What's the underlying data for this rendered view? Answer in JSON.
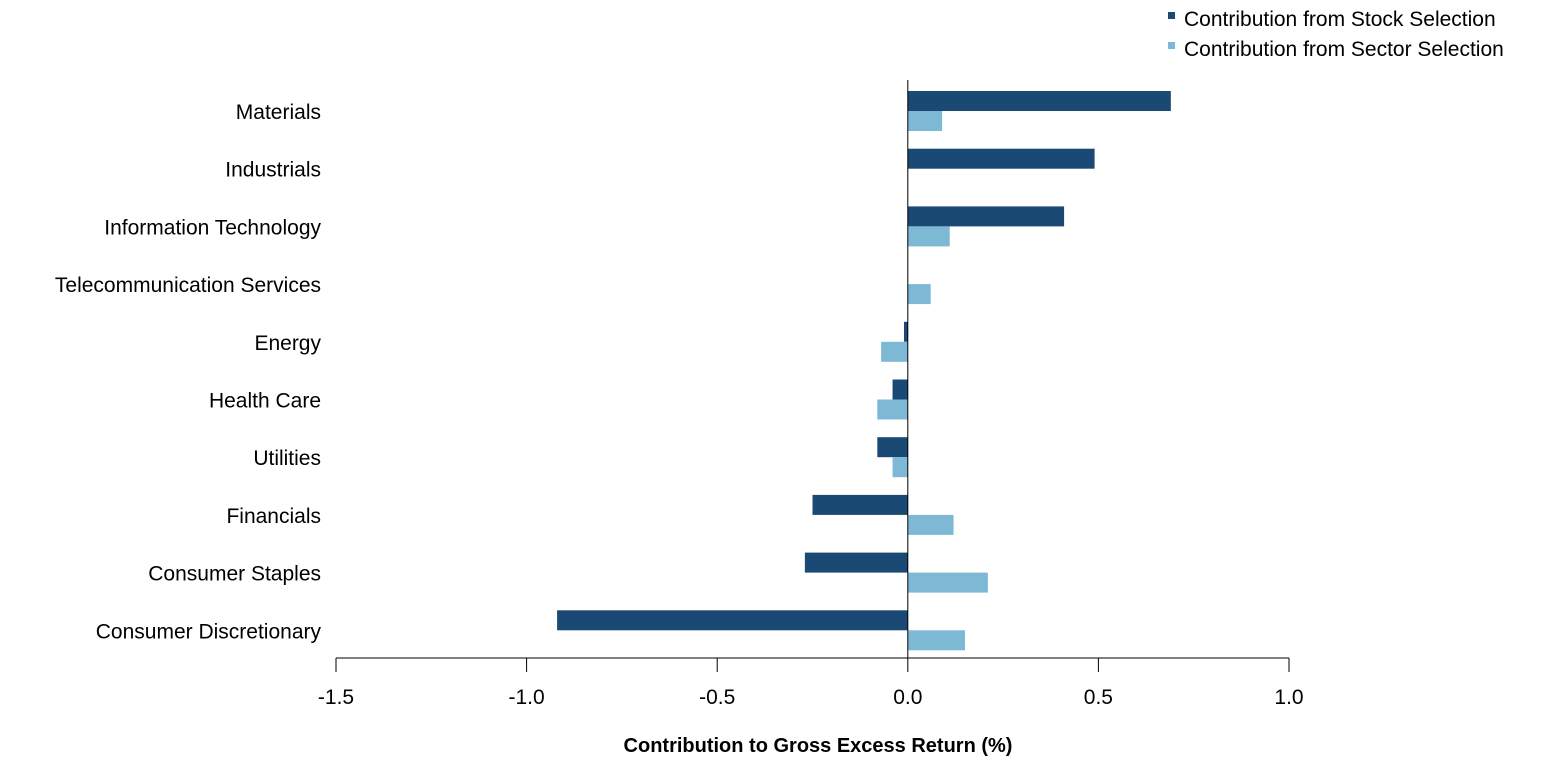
{
  "chart_data": {
    "type": "bar",
    "orientation": "horizontal",
    "categories": [
      "Materials",
      "Industrials",
      "Information Technology",
      "Telecommunication Services",
      "Energy",
      "Health Care",
      "Utilities",
      "Financials",
      "Consumer Staples",
      "Consumer Discretionary"
    ],
    "series": [
      {
        "name": "Contribution from Stock Selection",
        "color": "#1a4a74",
        "values": [
          0.69,
          0.49,
          0.41,
          0.0,
          -0.01,
          -0.04,
          -0.08,
          -0.25,
          -0.27,
          -0.92
        ]
      },
      {
        "name": "Contribution from Sector Selection",
        "color": "#7db9d4",
        "values": [
          0.09,
          0.0,
          0.11,
          0.06,
          -0.07,
          -0.08,
          -0.04,
          0.12,
          0.21,
          0.15
        ]
      }
    ],
    "xlabel": "Contribution to Gross Excess Return (%)",
    "xlim": [
      -1.5,
      1.0
    ],
    "xticks": [
      "-1.5",
      "-1.0",
      "-0.5",
      "0.0",
      "0.5",
      "1.0"
    ],
    "grid": false,
    "legend": "top-right"
  }
}
